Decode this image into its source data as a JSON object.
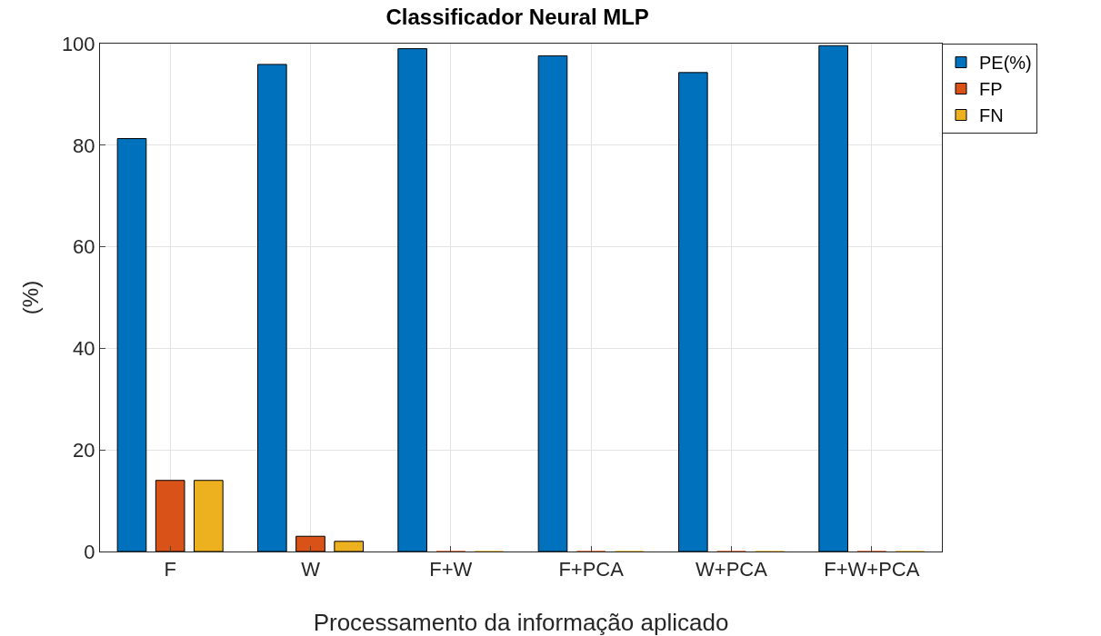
{
  "chart_data": {
    "type": "bar",
    "title": "Classificador Neural MLP",
    "xlabel": "Processamento da informação aplicado",
    "ylabel": "(%)",
    "categories": [
      "F",
      "W",
      "F+W",
      "F+PCA",
      "W+PCA",
      "F+W+PCA"
    ],
    "series": [
      {
        "name": "PE(%)",
        "color": "#0072bd",
        "values": [
          81.3,
          95.9,
          99.0,
          97.6,
          94.3,
          99.6
        ]
      },
      {
        "name": "FP",
        "color": "#d95319",
        "values": [
          14.0,
          3.0,
          0,
          0,
          0,
          0
        ]
      },
      {
        "name": "FN",
        "color": "#edb120",
        "values": [
          14.0,
          2.0,
          0,
          0,
          0,
          0
        ]
      }
    ],
    "ylim": [
      0,
      100
    ],
    "yticks": [
      0,
      20,
      40,
      60,
      80,
      100
    ],
    "grid": true,
    "legend": "top right"
  }
}
